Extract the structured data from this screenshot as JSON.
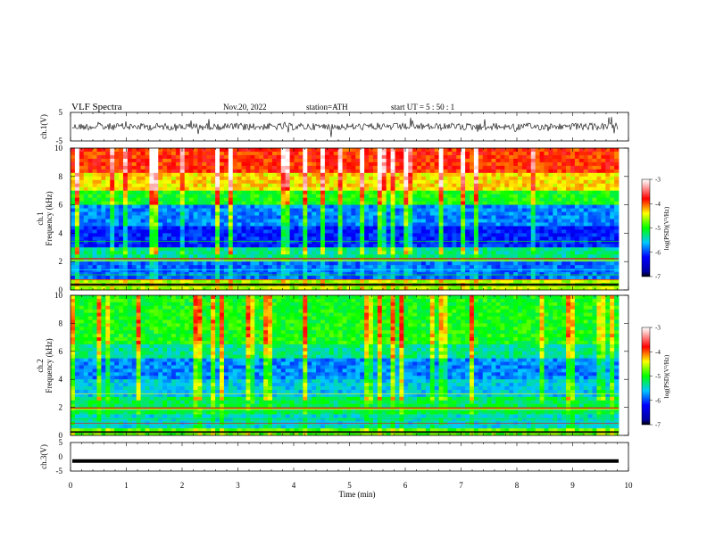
{
  "header": {
    "title": "VLF Spectra",
    "date": "Nov.20, 2022",
    "station": "station=ATH",
    "start": "start UT = 5 : 50 : 1"
  },
  "chart_data": [
    {
      "type": "line",
      "ylabel": "ch.1(V)",
      "ylim": [
        -5,
        5
      ],
      "y_ticks": [
        "5",
        "-5"
      ],
      "xlim": [
        0,
        10
      ],
      "series_color": "#000000"
    },
    {
      "type": "heatmap",
      "ylabel_channel": "ch.1",
      "ylabel": "Frequency (kHz)",
      "ylim": [
        0,
        10
      ],
      "y_ticks": [
        "10",
        "8",
        "6",
        "4",
        "2",
        "0"
      ],
      "xlim": [
        0,
        10
      ],
      "colorbar_label": "log(PSD)(V²/Hz)",
      "colorbar_ticks": [
        "-3",
        "-4",
        "-5",
        "-6",
        "-7"
      ],
      "colorbar_range": [
        -7,
        -3
      ]
    },
    {
      "type": "heatmap",
      "ylabel_channel": "ch.2",
      "ylabel": "Frequency (kHz)",
      "ylim": [
        0,
        10
      ],
      "y_ticks": [
        "10",
        "8",
        "6",
        "4",
        "2",
        "0"
      ],
      "xlim": [
        0,
        10
      ],
      "colorbar_label": "log(PSD)(V²/Hz)",
      "colorbar_ticks": [
        "-3",
        "-4",
        "-5",
        "-6",
        "-7"
      ],
      "colorbar_range": [
        -7,
        -3
      ]
    },
    {
      "type": "line",
      "ylabel": "ch.3(V)",
      "ylim": [
        -5,
        5
      ],
      "y_ticks": [
        "5",
        "0",
        "-5"
      ],
      "xlim": [
        0,
        10
      ],
      "x_ticks": [
        "0",
        "1",
        "2",
        "3",
        "4",
        "5",
        "6",
        "7",
        "8",
        "9",
        "10"
      ],
      "xlabel": "Time (min)",
      "constant_value": -1.5,
      "series_color": "#000000"
    }
  ],
  "colors": {
    "colormap": [
      "#000000",
      "#0000ff",
      "#00ffff",
      "#00ff00",
      "#ffff00",
      "#ff0000",
      "#ffffff"
    ]
  }
}
